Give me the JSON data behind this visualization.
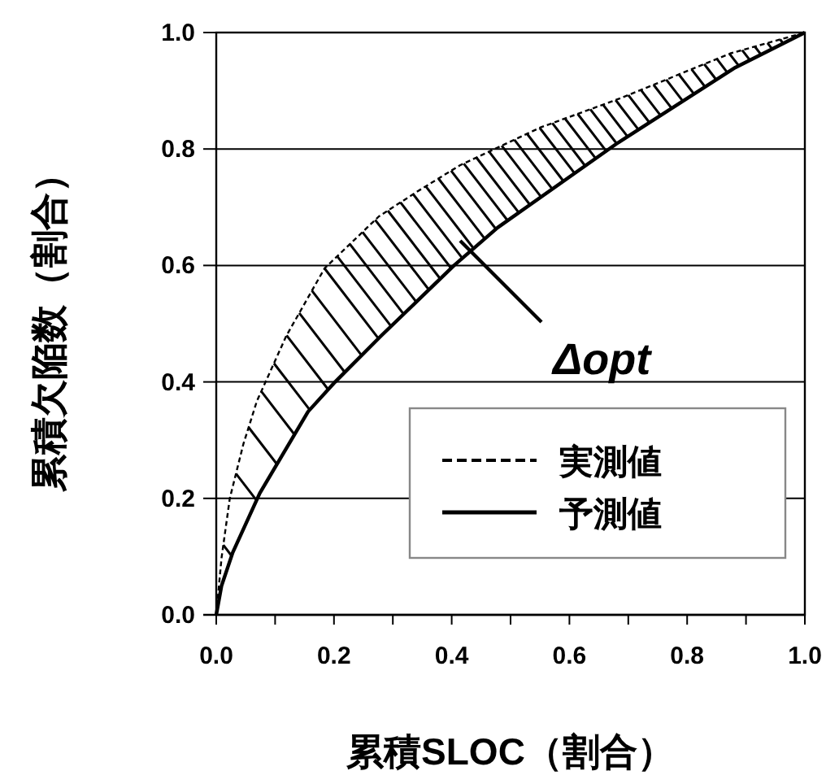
{
  "chart_data": {
    "type": "line",
    "xlabel": "累積SLOC（割合）",
    "ylabel": "累積欠陥数（割合）",
    "xlim": [
      0,
      1
    ],
    "ylim": [
      0,
      1
    ],
    "xticks": [
      {
        "value": 0,
        "label": "0.0"
      },
      {
        "value": 0.1,
        "label": null
      },
      0.2,
      {
        "value": 0.3,
        "label": null
      },
      0.4,
      {
        "value": 0.5,
        "label": null
      },
      0.6,
      {
        "value": 0.7,
        "label": null
      },
      0.8,
      {
        "value": 0.9,
        "label": null
      },
      {
        "value": 1,
        "label": "1.0"
      }
    ],
    "yticks": [
      {
        "value": 0,
        "label": "0.0"
      },
      0.2,
      0.4,
      0.6,
      0.8,
      {
        "value": 1,
        "label": "1.0"
      }
    ],
    "grid": "y",
    "legend": "bottom right",
    "series": [
      {
        "name": "実測値",
        "color": "#000000",
        "line_style": "dotted",
        "x": [
          0,
          0.009,
          0.023,
          0.046,
          0.069,
          0.119,
          0.184,
          0.276,
          0.34,
          0.414,
          0.551,
          0.689,
          0.827,
          0.873,
          1
        ],
        "values": [
          0,
          0.098,
          0.2,
          0.293,
          0.367,
          0.479,
          0.595,
          0.684,
          0.726,
          0.772,
          0.837,
          0.888,
          0.945,
          0.964,
          1
        ]
      },
      {
        "name": "予測値",
        "color": "#000000",
        "line_style": "solid",
        "x": [
          0,
          0.009,
          0.028,
          0.074,
          0.156,
          0.202,
          0.28,
          0.404,
          0.478,
          0.68,
          0.882,
          1
        ],
        "values": [
          0,
          0.05,
          0.107,
          0.209,
          0.349,
          0.4,
          0.479,
          0.6,
          0.665,
          0.809,
          0.94,
          1
        ]
      }
    ],
    "annotations": [
      "Δopt"
    ]
  }
}
